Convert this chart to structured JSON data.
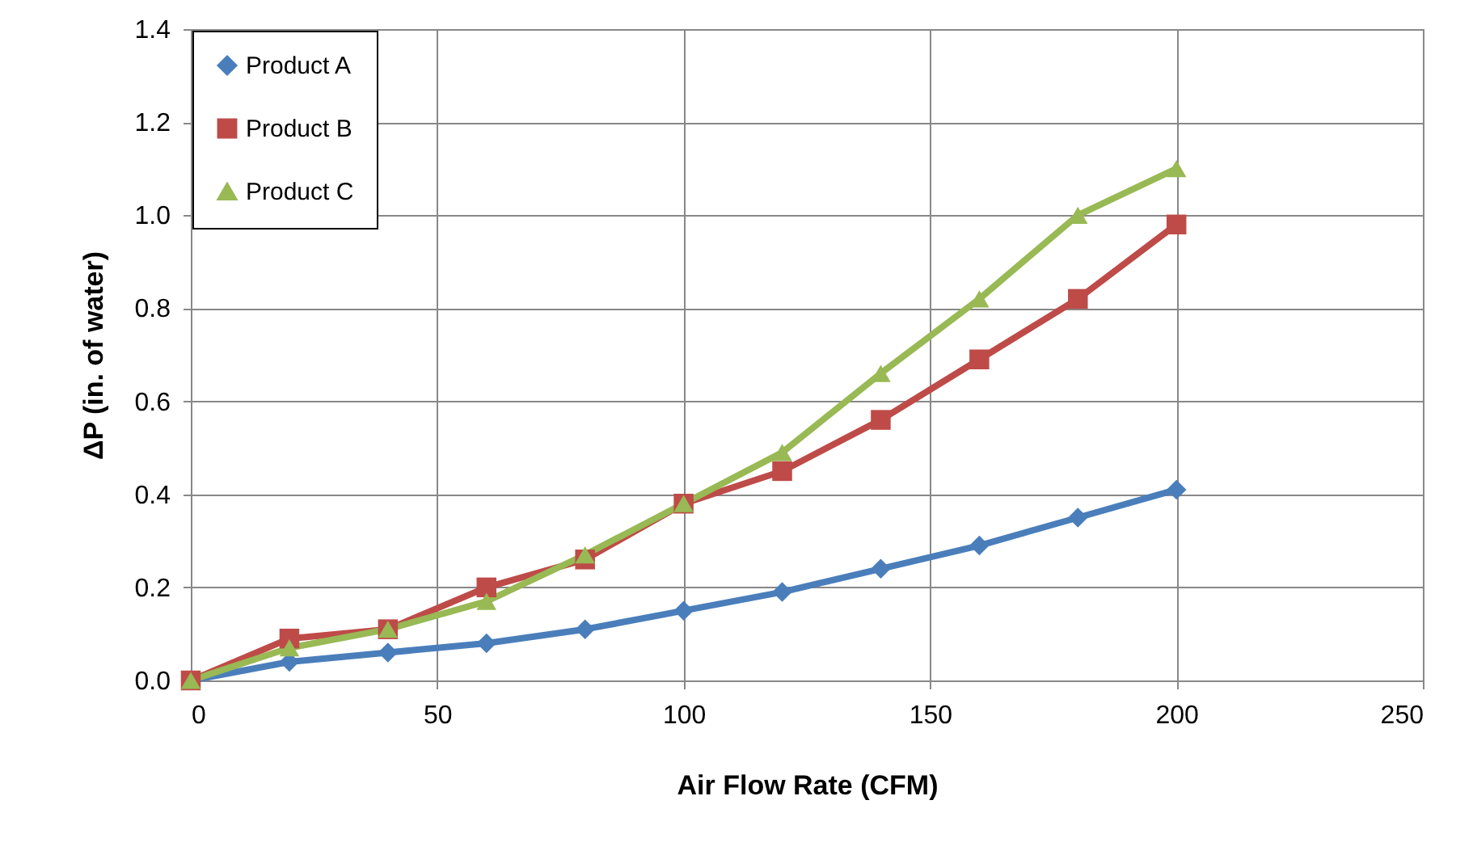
{
  "chart_data": {
    "type": "line",
    "xlabel": "Air Flow Rate (CFM)",
    "ylabel": "ΔP (in. of water)",
    "x": [
      0,
      20,
      40,
      60,
      80,
      100,
      120,
      140,
      160,
      180,
      200
    ],
    "series": [
      {
        "name": "Product A",
        "color": "#4a7ebb",
        "marker": "diamond",
        "values": [
          0,
          0.04,
          0.06,
          0.08,
          0.11,
          0.15,
          0.19,
          0.24,
          0.29,
          0.35,
          0.41
        ]
      },
      {
        "name": "Product B",
        "color": "#be4b48",
        "marker": "square",
        "values": [
          0,
          0.09,
          0.11,
          0.2,
          0.26,
          0.38,
          0.45,
          0.56,
          0.69,
          0.82,
          0.98
        ]
      },
      {
        "name": "Product C",
        "color": "#98b954",
        "marker": "triangle",
        "values": [
          0,
          0.07,
          0.11,
          0.17,
          0.27,
          0.38,
          0.49,
          0.66,
          0.82,
          1.0,
          1.1
        ]
      }
    ],
    "xlim": [
      0,
      250
    ],
    "xticks": [
      0,
      50,
      100,
      150,
      200,
      250
    ],
    "ylim": [
      0,
      1.4
    ],
    "yticks": [
      {
        "value": 0,
        "label": "0.0"
      },
      {
        "value": 0.2,
        "label": "0.2"
      },
      {
        "value": 0.4,
        "label": "0.4"
      },
      {
        "value": 0.6,
        "label": "0.6"
      },
      {
        "value": 0.8,
        "label": "0.8"
      },
      {
        "value": 1.0,
        "label": "1.0"
      },
      {
        "value": 1.2,
        "label": "1.2"
      },
      {
        "value": 1.4,
        "label": "1.4"
      }
    ],
    "grid": true,
    "legend": "top left",
    "line_style": "solid"
  }
}
